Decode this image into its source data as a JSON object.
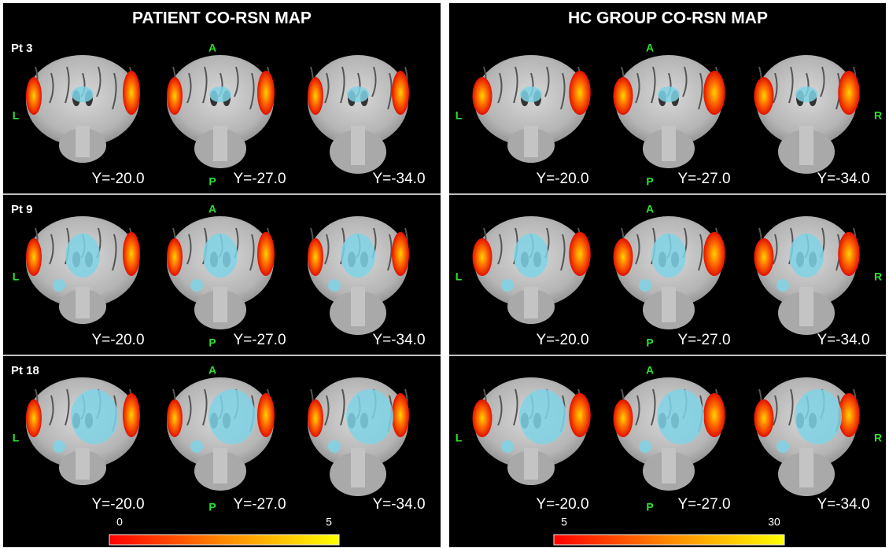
{
  "panels": [
    {
      "title": "PATIENT CO-RSN MAP",
      "rows": [
        {
          "label": "Pt 3",
          "orientation": {
            "anterior": "A",
            "posterior": "P",
            "left": "L"
          },
          "slices": [
            "Y=-20.0",
            "Y=-27.0",
            "Y=-34.0"
          ]
        },
        {
          "label": "Pt 9",
          "orientation": {
            "anterior": "A",
            "posterior": "P",
            "left": "L"
          },
          "slices": [
            "Y=-20.0",
            "Y=-27.0",
            "Y=-34.0"
          ]
        },
        {
          "label": "Pt 18",
          "orientation": {
            "anterior": "A",
            "posterior": "P",
            "left": "L"
          },
          "slices": [
            "Y=-20.0",
            "Y=-27.0",
            "Y=-34.0"
          ]
        }
      ],
      "colorbar": {
        "lim": [
          0,
          5
        ],
        "ticks": [
          0,
          5
        ]
      }
    },
    {
      "title": "HC GROUP CO-RSN MAP",
      "rows": [
        {
          "orientation": {
            "anterior": "A",
            "posterior": "P",
            "left": "L",
            "right": "R"
          },
          "slices": [
            "Y=-20.0",
            "Y=-27.0",
            "Y=-34.0"
          ]
        },
        {
          "orientation": {
            "anterior": "A",
            "posterior": "P",
            "left": "L",
            "right": "R"
          },
          "slices": [
            "Y=-20.0",
            "Y=-27.0",
            "Y=-34.0"
          ]
        },
        {
          "orientation": {
            "anterior": "A",
            "posterior": "P",
            "left": "L",
            "right": "R"
          },
          "slices": [
            "Y=-20.0",
            "Y=-27.0",
            "Y=-34.0"
          ]
        }
      ],
      "colorbar": {
        "lim": [
          5,
          30
        ],
        "ticks": [
          5,
          30
        ]
      }
    }
  ]
}
